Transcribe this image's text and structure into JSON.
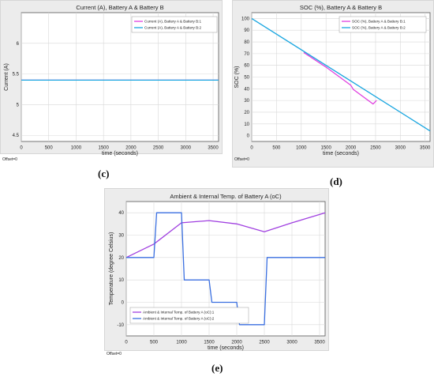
{
  "captions": {
    "c": "(c)",
    "d": "(d)",
    "e": "(e)"
  },
  "chart_data": [
    {
      "id": "c",
      "type": "line",
      "title": "Current (A), Battery  A & Battery  B",
      "xlabel": "time (seconds)",
      "ylabel": "Current (A)",
      "footer": "Offset=0",
      "xlim": [
        0,
        3600
      ],
      "ylim": [
        4.4,
        6.5
      ],
      "xticks": [
        0,
        500,
        1000,
        1500,
        2000,
        2500,
        3000,
        3500
      ],
      "yticks": [
        4.5,
        5,
        5.5,
        6
      ],
      "grid": true,
      "legend_position": "top-right",
      "series": [
        {
          "name": "Current (A), Battery  A & Battery B:1",
          "color": "#e040e0",
          "x": [
            0,
            3600
          ],
          "y": [
            5.4,
            5.4
          ]
        },
        {
          "name": "Current (A), Battery  A & Battery B:2",
          "color": "#1aa6e0",
          "x": [
            0,
            3600
          ],
          "y": [
            5.4,
            5.4
          ]
        }
      ]
    },
    {
      "id": "d",
      "type": "line",
      "title": "SOC (%), Battery  A & Battery  B",
      "xlabel": "time (seconds)",
      "ylabel": "SOC (%)",
      "footer": "Offset=0",
      "xlim": [
        0,
        3600
      ],
      "ylim": [
        -5,
        105
      ],
      "xticks": [
        0,
        500,
        1000,
        1500,
        2000,
        2500,
        3000,
        3500
      ],
      "yticks": [
        0,
        10,
        20,
        30,
        40,
        50,
        60,
        70,
        80,
        90,
        100
      ],
      "grid": true,
      "legend_position": "top-right",
      "series": [
        {
          "name": "SOC (%), Battery  A & Battery B:1",
          "color": "#e040e0",
          "x": [
            1050,
            1500,
            2000,
            2050,
            2450,
            2520
          ],
          "y": [
            71,
            58.5,
            43,
            39.5,
            27,
            30
          ]
        },
        {
          "name": "SOC (%), Battery  A & Battery B:2",
          "color": "#1aa6e0",
          "x": [
            0,
            3600
          ],
          "y": [
            100,
            4
          ]
        }
      ]
    },
    {
      "id": "e",
      "type": "line",
      "title": "Ambient & Internal Temp. of Battery A (oC)",
      "xlabel": "time (seconds)",
      "ylabel": "Temperature (degree Celsius)",
      "footer": "Offset=0",
      "xlim": [
        0,
        3600
      ],
      "ylim": [
        -15,
        45
      ],
      "xticks": [
        0,
        500,
        1000,
        1500,
        2000,
        2500,
        3000,
        3500
      ],
      "yticks": [
        -10,
        0,
        10,
        20,
        30,
        40
      ],
      "grid": true,
      "legend_position": "bottom-left",
      "series": [
        {
          "name": "Ambient & Internal Temp. of Battery A (oC):1",
          "color": "#a040e0",
          "x": [
            0,
            500,
            1000,
            1500,
            2000,
            2500,
            3000,
            3600
          ],
          "y": [
            20,
            26,
            35.5,
            36.5,
            35,
            31.5,
            35.5,
            40
          ]
        },
        {
          "name": "Ambient & Internal Temp. of Battery A (oC):2",
          "color": "#3a6fe0",
          "x": [
            0,
            500,
            550,
            1000,
            1050,
            1500,
            1550,
            2000,
            2050,
            2500,
            2550,
            3600
          ],
          "y": [
            20,
            20,
            40,
            40,
            10,
            10,
            0,
            0,
            -10,
            -10,
            20,
            20
          ]
        }
      ]
    }
  ]
}
